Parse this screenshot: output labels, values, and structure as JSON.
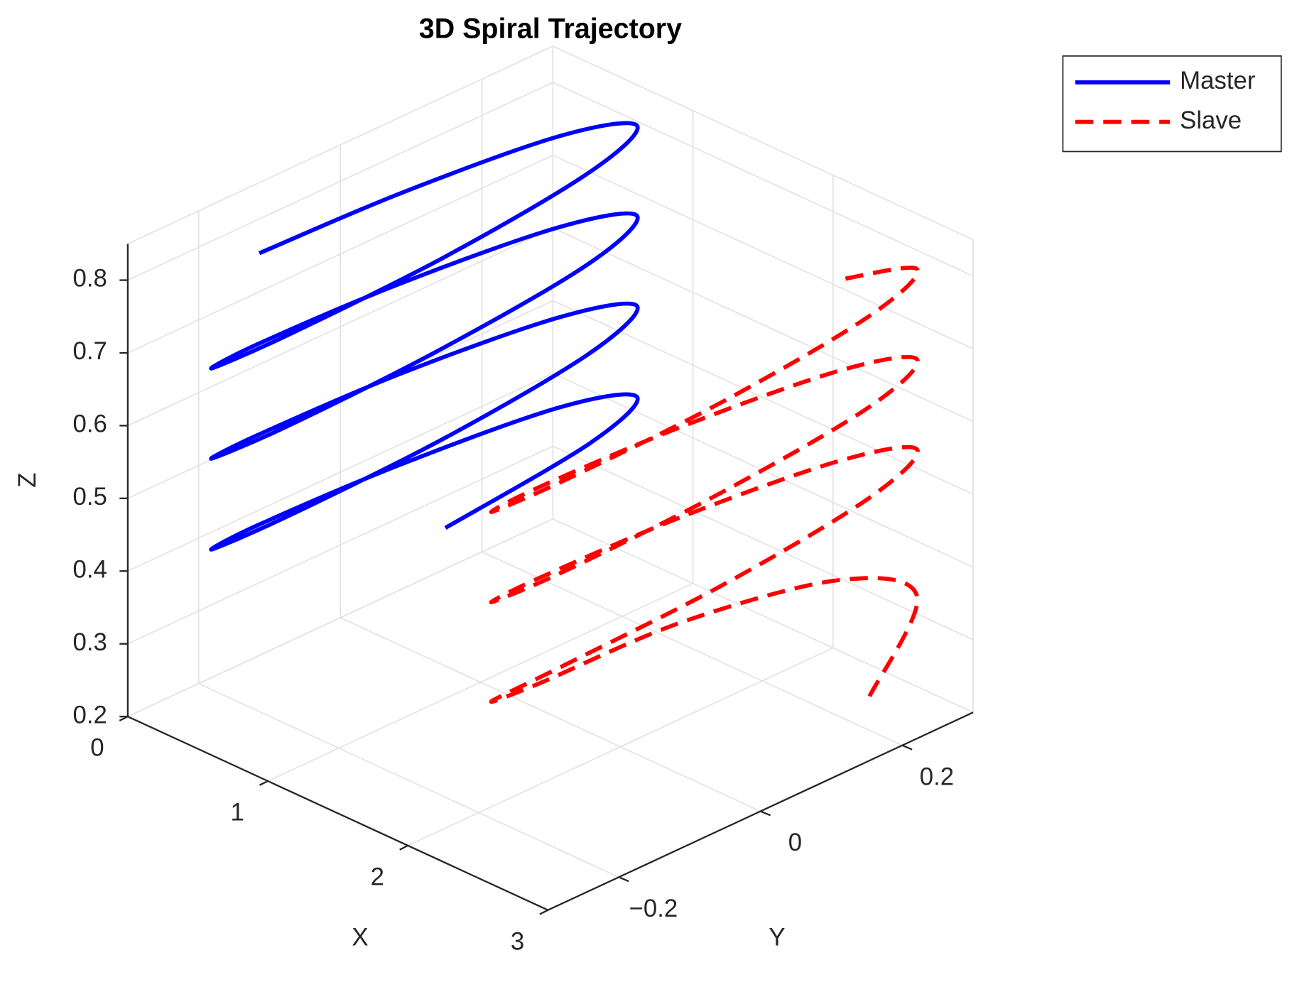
{
  "chart_data": {
    "type": "line3d",
    "title": "3D Spiral Trajectory",
    "xlabel": "X",
    "ylabel": "Y",
    "zlabel": "Z",
    "xlim": [
      0,
      3
    ],
    "ylim": [
      -0.3,
      0.3
    ],
    "zlim": [
      0.2,
      0.85
    ],
    "xticks": [
      0,
      1,
      2,
      3
    ],
    "yticks": [
      {
        "value": -0.2,
        "label": "−0.2"
      },
      0,
      0.2
    ],
    "zticks": [
      0.2,
      0.3,
      0.4,
      0.5,
      0.6,
      0.7,
      0.8
    ],
    "grid": true,
    "legend": "upper right",
    "series": [
      {
        "name": "Master",
        "color": "#0000ff",
        "dash": "solid",
        "x": [
          0.75,
          0.706,
          0.6,
          0.494,
          0.45,
          0.494,
          0.6,
          0.706,
          0.75,
          0.706,
          0.6,
          0.494,
          0.45,
          0.494,
          0.6,
          0.706,
          0.75,
          0.706,
          0.6,
          0.494,
          0.45,
          0.494,
          0.6,
          0.706,
          0.75,
          0.706,
          0.6,
          0.494,
          0.45,
          0.494
        ],
        "y": [
          0,
          0.212,
          0.3,
          0.212,
          0,
          -0.212,
          -0.3,
          -0.212,
          0,
          0.212,
          0.3,
          0.212,
          0,
          -0.212,
          -0.3,
          -0.212,
          0,
          0.212,
          0.3,
          0.212,
          0,
          -0.212,
          -0.3,
          -0.212,
          0,
          0.212,
          0.3,
          0.212,
          0,
          -0.212
        ],
        "z": [
          0.39,
          0.406,
          0.421,
          0.437,
          0.452,
          0.468,
          0.483,
          0.499,
          0.514,
          0.53,
          0.546,
          0.561,
          0.577,
          0.592,
          0.608,
          0.623,
          0.639,
          0.654,
          0.67,
          0.685,
          0.701,
          0.717,
          0.732,
          0.748,
          0.763,
          0.779,
          0.794,
          0.81,
          0.825,
          0.841
        ]
      },
      {
        "name": "Slave",
        "color": "#ff0000",
        "dash": "dashed",
        "x": [
          2.706,
          2.6,
          2.494,
          2.45,
          2.494,
          2.6,
          2.706,
          2.75,
          2.706,
          2.6,
          2.494,
          2.45,
          2.494,
          2.6,
          2.706,
          2.75,
          2.706,
          2.6,
          2.494,
          2.45,
          2.494,
          2.6,
          2.706,
          2.75,
          2.706,
          2.6,
          2.494
        ],
        "y": [
          0.212,
          0.3,
          0.212,
          0,
          -0.212,
          -0.3,
          -0.212,
          0,
          0.212,
          0.3,
          0.212,
          0,
          -0.212,
          -0.3,
          -0.212,
          0,
          0.212,
          0.3,
          0.212,
          0,
          -0.212,
          -0.3,
          -0.212,
          0,
          0.212,
          0.3,
          0.212
        ],
        "z": [
          0.236,
          0.324,
          0.377,
          0.412,
          0.427,
          0.452,
          0.474,
          0.491,
          0.509,
          0.526,
          0.541,
          0.557,
          0.572,
          0.588,
          0.603,
          0.619,
          0.634,
          0.65,
          0.665,
          0.681,
          0.697,
          0.712,
          0.728,
          0.743,
          0.759,
          0.774,
          0.79
        ]
      }
    ]
  }
}
